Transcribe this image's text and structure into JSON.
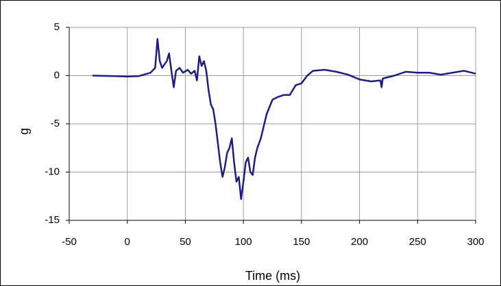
{
  "chart_data": {
    "type": "line",
    "xlabel": "Time (ms)",
    "ylabel": "g",
    "x": [
      -30,
      -10,
      0,
      10,
      20,
      24,
      26,
      28,
      30,
      34,
      36,
      38,
      40,
      42,
      45,
      48,
      52,
      55,
      58,
      60,
      62,
      64,
      66,
      68,
      70,
      72,
      74,
      76,
      78,
      80,
      82,
      84,
      86,
      88,
      90,
      92,
      94,
      96,
      98,
      100,
      102,
      104,
      106,
      108,
      110,
      112,
      115,
      118,
      120,
      125,
      130,
      135,
      140,
      145,
      150,
      155,
      160,
      170,
      180,
      190,
      200,
      210,
      218,
      219,
      220,
      230,
      240,
      250,
      260,
      270,
      280,
      290,
      300
    ],
    "values": [
      0,
      -0.05,
      -0.1,
      -0.05,
      0.3,
      0.8,
      3.8,
      1.5,
      0.8,
      1.5,
      2.3,
      0.5,
      -1.2,
      0.5,
      0.8,
      0.3,
      0.6,
      0.2,
      0.5,
      -0.5,
      2.0,
      1.0,
      1.5,
      0.5,
      -1.5,
      -3,
      -3.5,
      -5,
      -7,
      -9,
      -10.5,
      -9.5,
      -8,
      -7.5,
      -6.5,
      -9,
      -11,
      -10.5,
      -12.8,
      -11,
      -9,
      -8.5,
      -10,
      -10.3,
      -8.5,
      -7.5,
      -6.5,
      -5,
      -4,
      -2.5,
      -2.2,
      -2,
      -2,
      -1,
      -0.8,
      0,
      0.5,
      0.6,
      0.4,
      0.1,
      -0.4,
      -0.6,
      -0.5,
      -1.2,
      -0.3,
      0,
      0.4,
      0.3,
      0.3,
      0.1,
      0.3,
      0.5,
      0.2
    ],
    "color": "#1c1c85",
    "xlim": [
      -50,
      300
    ],
    "xticks": [
      -50,
      0,
      50,
      100,
      150,
      200,
      250,
      300
    ],
    "ylim": [
      -15,
      5
    ],
    "yticks": [
      -15,
      -10,
      -5,
      0,
      5
    ],
    "grid": true
  }
}
